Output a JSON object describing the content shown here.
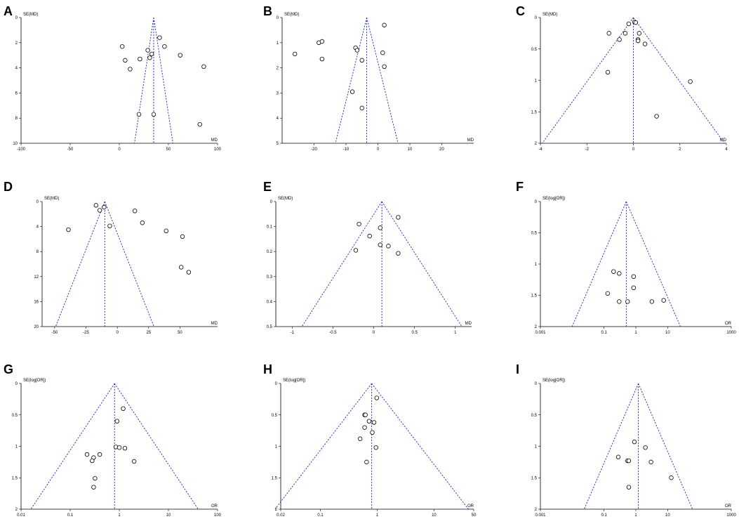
{
  "chart_data": [
    {
      "panel": "A",
      "type": "scatter",
      "ylabel": "SE(MD)",
      "xlabel": "MD",
      "xscale": "linear",
      "xlim": [
        -100,
        100
      ],
      "xticks": [
        -100,
        -50,
        0,
        50,
        100
      ],
      "ylim": [
        0,
        10
      ],
      "yticks": [
        0,
        2,
        4,
        6,
        8,
        10
      ],
      "pooled": 35,
      "funnel": true,
      "points": [
        [
          3,
          2.3
        ],
        [
          6,
          3.4
        ],
        [
          11,
          4.1
        ],
        [
          21,
          3.3
        ],
        [
          29,
          2.6
        ],
        [
          31,
          3.2
        ],
        [
          33,
          2.9
        ],
        [
          41,
          1.6
        ],
        [
          46,
          2.3
        ],
        [
          62,
          3.0
        ],
        [
          86,
          3.9
        ],
        [
          20,
          7.7
        ],
        [
          35,
          7.7
        ],
        [
          82,
          8.5
        ]
      ]
    },
    {
      "panel": "B",
      "type": "scatter",
      "ylabel": "SE(MD)",
      "xlabel": "MD",
      "xscale": "linear",
      "xlim": [
        -30,
        30
      ],
      "xticks": [
        -20,
        -10,
        0,
        10,
        20
      ],
      "ylim": [
        0,
        5
      ],
      "yticks": [
        0,
        1,
        2,
        3,
        4,
        5
      ],
      "pooled": -3.5,
      "funnel": true,
      "points": [
        [
          -26,
          1.45
        ],
        [
          -18.5,
          1.0
        ],
        [
          -17.5,
          0.95
        ],
        [
          -17.5,
          1.65
        ],
        [
          -7,
          1.2
        ],
        [
          -6.5,
          1.3
        ],
        [
          -5,
          1.7
        ],
        [
          2,
          0.3
        ],
        [
          1.5,
          1.4
        ],
        [
          2,
          1.95
        ],
        [
          -8,
          2.95
        ],
        [
          -5,
          3.6
        ]
      ]
    },
    {
      "panel": "C",
      "type": "scatter",
      "ylabel": "SE(MD)",
      "xlabel": "MD",
      "xscale": "linear",
      "xlim": [
        -4,
        4
      ],
      "xticks": [
        -4,
        -2,
        0,
        2,
        4
      ],
      "ylim": [
        0,
        2
      ],
      "yticks": [
        0,
        0.5,
        1,
        1.5,
        2
      ],
      "pooled": 0,
      "funnel": true,
      "points": [
        [
          -0.2,
          0.1
        ],
        [
          0.05,
          0.07
        ],
        [
          0.1,
          0.08
        ],
        [
          -0.35,
          0.25
        ],
        [
          -1.05,
          0.25
        ],
        [
          -0.6,
          0.35
        ],
        [
          0.25,
          0.25
        ],
        [
          0.2,
          0.35
        ],
        [
          0.2,
          0.37
        ],
        [
          0.5,
          0.42
        ],
        [
          -1.1,
          0.87
        ],
        [
          2.45,
          1.02
        ],
        [
          1,
          1.57
        ]
      ]
    },
    {
      "panel": "D",
      "type": "scatter",
      "ylabel": "SE(MD)",
      "xlabel": "MD",
      "xscale": "linear",
      "xlim": [
        -60,
        80
      ],
      "xticks": [
        -50,
        -25,
        0,
        25,
        50
      ],
      "ylim": [
        0,
        20
      ],
      "yticks": [
        0,
        4,
        8,
        12,
        16,
        20
      ],
      "pooled": -10,
      "funnel": true,
      "points": [
        [
          -17,
          0.6
        ],
        [
          -14,
          1.4
        ],
        [
          -10.5,
          0.9
        ],
        [
          -6,
          3.9
        ],
        [
          14,
          1.5
        ],
        [
          20,
          3.4
        ],
        [
          39,
          4.7
        ],
        [
          52,
          5.6
        ],
        [
          -39,
          4.5
        ],
        [
          51,
          10.5
        ],
        [
          57,
          11.3
        ]
      ]
    },
    {
      "panel": "E",
      "type": "scatter",
      "ylabel": "SE(MD)",
      "xlabel": "MD",
      "xscale": "linear",
      "xlim": [
        -1.2,
        1.2
      ],
      "xticks": [
        -1,
        -0.5,
        0,
        0.5,
        1
      ],
      "ylim": [
        0,
        0.5
      ],
      "yticks": [
        0,
        0.1,
        0.2,
        0.3,
        0.4,
        0.5
      ],
      "pooled": 0.1,
      "funnel": true,
      "points": [
        [
          -0.18,
          0.09
        ],
        [
          0.3,
          0.063
        ],
        [
          0.08,
          0.105
        ],
        [
          -0.05,
          0.138
        ],
        [
          0.08,
          0.173
        ],
        [
          0.18,
          0.178
        ],
        [
          -0.22,
          0.195
        ],
        [
          0.3,
          0.207
        ]
      ]
    },
    {
      "panel": "F",
      "type": "scatter",
      "ylabel": "SE(log[OR])",
      "xlabel": "OR",
      "xscale": "log",
      "xlim": [
        0.001,
        1000
      ],
      "xticks": [
        0.001,
        0.1,
        1,
        10,
        1000
      ],
      "xticklabels": [
        "0.001",
        "0.1",
        "1",
        "10",
        "1000"
      ],
      "ylim": [
        0,
        2
      ],
      "yticks": [
        0,
        0.5,
        1,
        1.5,
        2
      ],
      "pooled": 0.5,
      "funnel": true,
      "points": [
        [
          0.2,
          1.12
        ],
        [
          0.3,
          1.15
        ],
        [
          0.85,
          1.2
        ],
        [
          0.85,
          1.38
        ],
        [
          0.13,
          1.47
        ],
        [
          0.3,
          1.6
        ],
        [
          0.55,
          1.6
        ],
        [
          3.2,
          1.6
        ],
        [
          7.5,
          1.58
        ]
      ]
    },
    {
      "panel": "G",
      "type": "scatter",
      "ylabel": "SE(log[OR])",
      "xlabel": "OR",
      "xscale": "log",
      "xlim": [
        0.01,
        100
      ],
      "xticks": [
        0.01,
        0.1,
        1,
        10,
        100
      ],
      "xticklabels": [
        "0.01",
        "0.1",
        "1",
        "10",
        "100"
      ],
      "ylim": [
        0,
        2
      ],
      "yticks": [
        0,
        0.5,
        1,
        1.5,
        2
      ],
      "pooled": 0.8,
      "funnel": true,
      "points": [
        [
          1.2,
          0.4
        ],
        [
          0.9,
          0.6
        ],
        [
          0.85,
          1.01
        ],
        [
          1,
          1.02
        ],
        [
          1.3,
          1.03
        ],
        [
          0.22,
          1.13
        ],
        [
          0.4,
          1.13
        ],
        [
          0.3,
          1.18
        ],
        [
          0.28,
          1.23
        ],
        [
          2,
          1.24
        ],
        [
          0.32,
          1.51
        ],
        [
          0.3,
          1.65
        ]
      ]
    },
    {
      "panel": "H",
      "type": "scatter",
      "ylabel": "SE(log[OR])",
      "xlabel": "OR",
      "xscale": "log",
      "xlim": [
        0.02,
        50
      ],
      "xticks": [
        0.02,
        0.1,
        1,
        10,
        50
      ],
      "xticklabels": [
        "0.02",
        "0.1",
        "1",
        "10",
        "50"
      ],
      "ylim": [
        0,
        2
      ],
      "yticks": [
        0,
        0.5,
        1,
        1.5,
        2
      ],
      "pooled": 0.8,
      "funnel": true,
      "points": [
        [
          0.98,
          0.23
        ],
        [
          0.6,
          0.5
        ],
        [
          0.62,
          0.5
        ],
        [
          0.72,
          0.6
        ],
        [
          0.88,
          0.62
        ],
        [
          0.6,
          0.7
        ],
        [
          0.82,
          0.78
        ],
        [
          0.5,
          0.88
        ],
        [
          0.95,
          1.02
        ],
        [
          0.65,
          1.25
        ]
      ]
    },
    {
      "panel": "I",
      "type": "scatter",
      "ylabel": "SE(log[OR])",
      "xlabel": "OR",
      "xscale": "log",
      "xlim": [
        0.001,
        1000
      ],
      "xticks": [
        0.001,
        0.1,
        1,
        10,
        1000
      ],
      "xticklabels": [
        "0.001",
        "0.1",
        "1",
        "10",
        "1000"
      ],
      "ylim": [
        0,
        2
      ],
      "yticks": [
        0,
        0.5,
        1,
        1.5,
        2
      ],
      "pooled": 1.2,
      "funnel": true,
      "points": [
        [
          0.9,
          0.93
        ],
        [
          2.0,
          1.02
        ],
        [
          0.28,
          1.17
        ],
        [
          0.55,
          1.23
        ],
        [
          0.6,
          1.23
        ],
        [
          3.0,
          1.25
        ],
        [
          13,
          1.5
        ],
        [
          0.6,
          1.65
        ]
      ]
    }
  ]
}
